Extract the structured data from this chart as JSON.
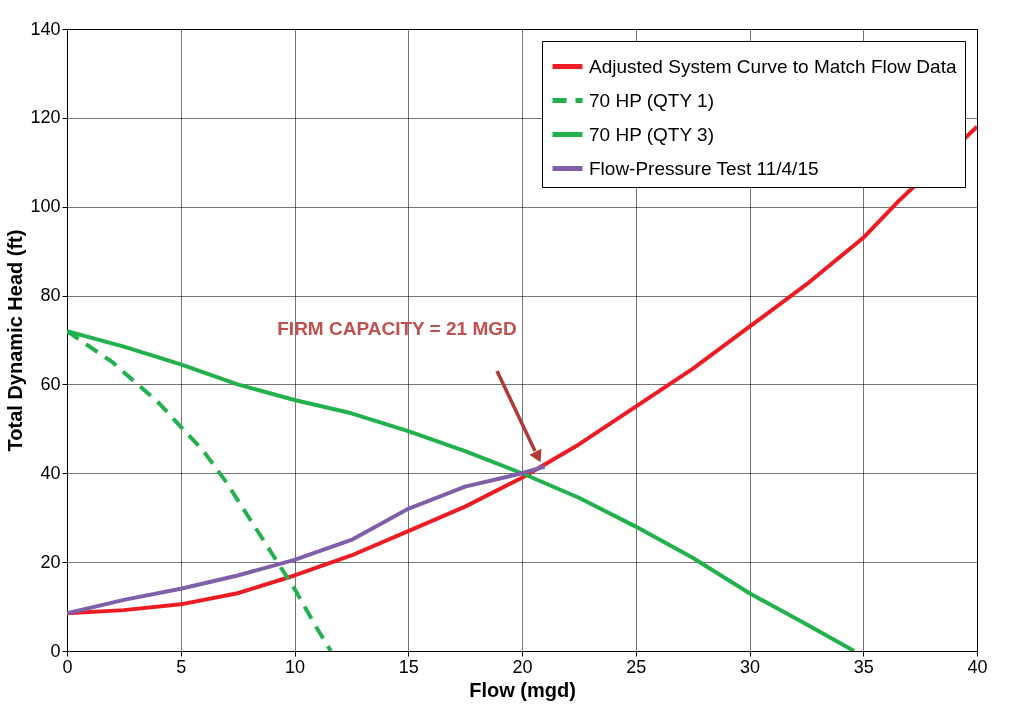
{
  "chart_data": {
    "type": "line",
    "xlabel": "Flow (mgd)",
    "ylabel": "Total Dynamic Head (ft)",
    "xlim": [
      0,
      40
    ],
    "xticks": [
      0,
      5,
      10,
      15,
      20,
      25,
      30,
      35,
      40
    ],
    "ylim": [
      0,
      140
    ],
    "yticks": [
      0,
      20,
      40,
      60,
      80,
      100,
      120,
      140
    ],
    "grid": true,
    "legend": "top right",
    "series": [
      {
        "name": "Adjusted System Curve to Match Flow Data",
        "color": "#ed1c24",
        "line_style": "solid",
        "x": [
          0,
          2.5,
          5,
          7.5,
          10,
          12.5,
          15,
          17.5,
          20,
          22.5,
          25,
          27.5,
          30,
          32.5,
          35,
          36.5,
          40
        ],
        "values": [
          8.5,
          9.2,
          10.5,
          13,
          17,
          21.5,
          27,
          32.5,
          39,
          46.5,
          55,
          63.5,
          73,
          82.5,
          93,
          101,
          118
        ]
      },
      {
        "name": "70 HP (QTY 1)",
        "color": "#22b14c",
        "line_style": "dashed",
        "x": [
          0,
          2,
          4,
          6,
          7,
          8,
          9,
          10,
          11,
          11.6
        ],
        "values": [
          72,
          65,
          56,
          45,
          38,
          30,
          22,
          14,
          5,
          0
        ]
      },
      {
        "name": "70 HP (QTY 3)",
        "color": "#22b14c",
        "line_style": "solid",
        "x": [
          0,
          2.5,
          5,
          7.5,
          10,
          12.5,
          15,
          17.5,
          20,
          22.5,
          25,
          27.5,
          30,
          32.5,
          34.6
        ],
        "values": [
          72,
          68.5,
          64.5,
          60,
          56.5,
          53.5,
          49.5,
          45,
          40,
          34.5,
          28,
          21,
          13,
          6,
          0
        ]
      },
      {
        "name": "Flow-Pressure Test 11/4/15",
        "color": "#7f5fa8",
        "line_style": "solid",
        "x": [
          0,
          2.5,
          5,
          7.5,
          10,
          12.5,
          15,
          17.5,
          20,
          21
        ],
        "values": [
          8.5,
          11.5,
          14,
          17,
          20.5,
          25,
          32,
          37,
          40,
          41.5
        ]
      }
    ],
    "annotations": [
      "FIRM CAPACITY = 21 MGD"
    ]
  }
}
